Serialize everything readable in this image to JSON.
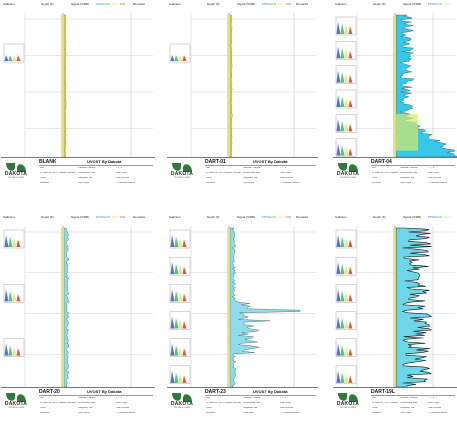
{
  "common": {
    "header_left": "Gallcium",
    "header_depth": "Depth (ft)",
    "header_signal": "Signal (%RB)",
    "header_remarks": "Remarks",
    "legend_tags": [
      "FTOC",
      "AFD",
      "GEO",
      "KIS"
    ],
    "logo_word": "DAKOTA",
    "logo_sub": "TECHNOLOGIES",
    "meta_labels": [
      "Site",
      "N. Water St. WOP Peoples Unsaturated Fill",
      "Client",
      "Ecoumbs",
      "Lattitude: Odrome",
      "Unsaturated: N/A",
      "Longitude: N/A",
      "Total Depth",
      "7' 1\" ft",
      "Floor Depth",
      "Date of Exam",
      "T. Peterdale LASER"
    ],
    "service": "UVOST By Dakota"
  },
  "sheets": [
    {
      "id": "s1",
      "well": "BLANK",
      "mode": "flat"
    },
    {
      "id": "s2",
      "well": "DART-01",
      "mode": "flat"
    },
    {
      "id": "s3",
      "well": "DART-04",
      "mode": "heavy"
    },
    {
      "id": "s4",
      "well": "DART-20",
      "mode": "light"
    },
    {
      "id": "s5",
      "well": "DART-23",
      "mode": "spike"
    },
    {
      "id": "s6",
      "well": "DART-19L",
      "mode": "dark"
    }
  ],
  "colors": {
    "cyan": "#38c7e8",
    "yellow": "#e8e36a",
    "green": "#3ab84a",
    "red": "#e03030",
    "blue": "#2a5bd8",
    "black": "#111111",
    "logo_green": "#2f7a3a"
  }
}
